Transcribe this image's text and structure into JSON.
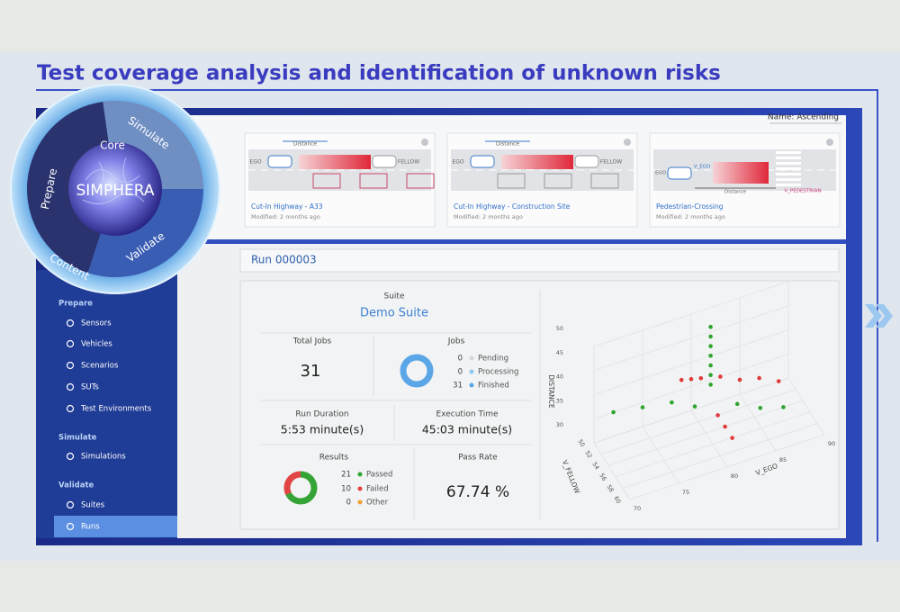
{
  "title": "Test coverage analysis and identification of unknown risks",
  "logo": {
    "prepare": "Prepare",
    "simulate": "Simulate",
    "validate": "Validate",
    "core": "Core",
    "name": "SIMPHERA",
    "ring": "Content"
  },
  "sort": "Name: Ascending",
  "cards": [
    {
      "title": "Cut-In Highway - A33",
      "modified": "Modified: 2 months ago",
      "labels": [
        "Distance",
        "EGO",
        "FELLOW"
      ]
    },
    {
      "title": "Cut-In Highway - Construction Site",
      "modified": "Modified: 2 months ago",
      "labels": [
        "Distance",
        "EGO",
        "FELLOW"
      ]
    },
    {
      "title": "Pedestrian-Crossing",
      "modified": "Modified: 2 months ago",
      "labels": [
        "EGO",
        "V_EGO",
        "Distance",
        "V_PEDESTRIAN"
      ]
    }
  ],
  "sidebar": [
    {
      "heading": "Prepare",
      "items": [
        "Sensors",
        "Vehicles",
        "Scenarios",
        "SUTs",
        "Test Environments"
      ]
    },
    {
      "heading": "Simulate",
      "items": [
        "Simulations"
      ]
    },
    {
      "heading": "Validate",
      "items": [
        "Suites",
        "Runs"
      ]
    }
  ],
  "run": {
    "title": "Run 000003",
    "suite_label": "Suite",
    "suite": "Demo Suite",
    "total_jobs_label": "Total Jobs",
    "total_jobs": 31,
    "jobs_label": "Jobs",
    "jobs": [
      {
        "name": "Pending",
        "count": 0,
        "color": "#d3d6da"
      },
      {
        "name": "Processing",
        "count": 0,
        "color": "#8ec6f0"
      },
      {
        "name": "Finished",
        "count": 31,
        "color": "#5ba6e6"
      }
    ],
    "duration_label": "Run Duration",
    "duration": "5:53 minute(s)",
    "exec_label": "Execution Time",
    "exec": "45:03 minute(s)",
    "results_label": "Results",
    "results": [
      {
        "name": "Passed",
        "count": 21,
        "color": "#35a335"
      },
      {
        "name": "Failed",
        "count": 10,
        "color": "#e04444"
      },
      {
        "name": "Other",
        "count": 0,
        "color": "#f0a232"
      }
    ],
    "pass_rate_label": "Pass Rate",
    "pass_rate": "67.74 %"
  },
  "scatter": {
    "type": "scatter3d",
    "zlabel": "DISTANCE",
    "xlabel": "V_EGO",
    "ylabel": "V_FELLOW",
    "zlim": [
      30,
      50
    ],
    "zticks": [
      30,
      35,
      40,
      45,
      50
    ],
    "xlim": [
      70,
      90
    ],
    "xticks": [
      70,
      75,
      80,
      85,
      90
    ],
    "ylim": [
      50,
      60
    ],
    "yticks": [
      50,
      52,
      54,
      56,
      58,
      60
    ],
    "series": [
      {
        "color": "#2fa52f",
        "v_ego": [
          82,
          82,
          82,
          82,
          82,
          82,
          82,
          72,
          75,
          78,
          80,
          84,
          86,
          88
        ],
        "v_fellow": [
          50,
          50,
          50,
          50,
          50,
          50,
          50,
          50,
          50,
          50,
          51,
          52,
          53,
          54
        ],
        "distance": [
          46,
          44,
          42,
          40,
          38,
          36,
          34,
          35,
          34,
          33,
          32,
          31,
          30,
          30
        ]
      },
      {
        "color": "#e03a3a",
        "v_ego": [
          82,
          82,
          82,
          79,
          80,
          81,
          83,
          85,
          87,
          89
        ],
        "v_fellow": [
          52,
          54,
          56,
          50,
          50,
          50,
          50,
          50,
          50,
          50
        ],
        "distance": [
          30,
          30,
          30,
          37,
          36.5,
          36,
          35,
          33,
          32,
          30
        ]
      }
    ]
  }
}
